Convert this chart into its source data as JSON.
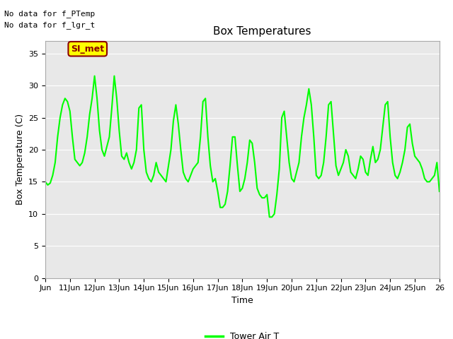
{
  "title": "Box Temperatures",
  "xlabel": "Time",
  "ylabel": "Box Temperature (C)",
  "no_data_text": [
    "No data for f_PTemp",
    "No data for f_lgr_t"
  ],
  "annotation_text": "SI_met",
  "annotation_color": "#8B0000",
  "annotation_bg": "#FFFF00",
  "annotation_border": "#8B0000",
  "line_color": "#00FF00",
  "line_width": 1.5,
  "ylim": [
    0,
    37
  ],
  "yticks": [
    0,
    5,
    10,
    15,
    20,
    25,
    30,
    35
  ],
  "legend_label": "Tower Air T",
  "legend_line_color": "#00FF00",
  "bg_color": "#ffffff",
  "plot_bg_color": "#E8E8E8",
  "grid_color": "white",
  "x_labels": [
    "Jun",
    "11Jun",
    "12Jun",
    "13Jun",
    "14Jun",
    "15Jun",
    "16Jun",
    "17Jun",
    "18Jun",
    "19Jun",
    "20Jun",
    "21Jun",
    "22Jun",
    "23Jun",
    "24Jun",
    "25Jun",
    "26"
  ],
  "tower_air_t_x": [
    0.0,
    0.1,
    0.2,
    0.3,
    0.4,
    0.5,
    0.6,
    0.7,
    0.8,
    0.9,
    1.0,
    1.1,
    1.2,
    1.3,
    1.4,
    1.5,
    1.6,
    1.7,
    1.8,
    1.9,
    2.0,
    2.1,
    2.2,
    2.3,
    2.4,
    2.5,
    2.6,
    2.7,
    2.8,
    2.9,
    3.0,
    3.1,
    3.2,
    3.3,
    3.4,
    3.5,
    3.6,
    3.7,
    3.8,
    3.9,
    4.0,
    4.1,
    4.2,
    4.3,
    4.4,
    4.5,
    4.6,
    4.7,
    4.8,
    4.9,
    5.0,
    5.1,
    5.2,
    5.3,
    5.4,
    5.5,
    5.6,
    5.7,
    5.8,
    5.9,
    6.0,
    6.1,
    6.2,
    6.3,
    6.4,
    6.5,
    6.6,
    6.7,
    6.8,
    6.9,
    7.0,
    7.1,
    7.2,
    7.3,
    7.4,
    7.5,
    7.6,
    7.7,
    7.8,
    7.9,
    8.0,
    8.1,
    8.2,
    8.3,
    8.4,
    8.5,
    8.6,
    8.7,
    8.8,
    8.9,
    9.0,
    9.1,
    9.2,
    9.3,
    9.4,
    9.5,
    9.6,
    9.7,
    9.8,
    9.9,
    10.0,
    10.1,
    10.2,
    10.3,
    10.4,
    10.5,
    10.6,
    10.7,
    10.8,
    10.9,
    11.0,
    11.1,
    11.2,
    11.3,
    11.4,
    11.5,
    11.6,
    11.7,
    11.8,
    11.9,
    12.0,
    12.1,
    12.2,
    12.3,
    12.4,
    12.5,
    12.6,
    12.7,
    12.8,
    12.9,
    13.0,
    13.1,
    13.2,
    13.3,
    13.4,
    13.5,
    13.6,
    13.7,
    13.8,
    13.9,
    14.0,
    14.1,
    14.2,
    14.3,
    14.4,
    14.5,
    14.6,
    14.7,
    14.8,
    14.9,
    15.0,
    15.1,
    15.2,
    15.3,
    15.4,
    15.5,
    15.6,
    15.7,
    15.8,
    15.9,
    16.0
  ],
  "tower_air_t_y": [
    15.0,
    14.5,
    14.8,
    16.0,
    18.0,
    22.0,
    25.0,
    27.0,
    28.0,
    27.5,
    26.0,
    22.0,
    18.5,
    18.0,
    17.5,
    18.0,
    19.5,
    22.0,
    25.5,
    28.0,
    31.5,
    28.0,
    23.0,
    20.0,
    19.0,
    20.5,
    22.0,
    26.5,
    31.5,
    28.0,
    23.0,
    19.0,
    18.5,
    19.5,
    18.0,
    17.0,
    18.0,
    20.0,
    26.5,
    27.0,
    20.0,
    16.5,
    15.5,
    15.0,
    16.0,
    18.0,
    16.5,
    16.0,
    15.5,
    15.0,
    17.5,
    20.0,
    24.5,
    27.0,
    24.0,
    20.0,
    16.5,
    15.5,
    15.0,
    16.0,
    17.0,
    17.5,
    18.0,
    22.0,
    27.5,
    28.0,
    22.0,
    17.5,
    15.0,
    15.5,
    13.5,
    11.0,
    11.0,
    11.5,
    13.5,
    17.5,
    22.0,
    22.0,
    17.5,
    13.5,
    14.0,
    15.5,
    18.0,
    21.5,
    21.0,
    18.0,
    14.0,
    13.0,
    12.5,
    12.5,
    13.0,
    9.5,
    9.5,
    10.0,
    13.0,
    17.0,
    25.0,
    26.0,
    22.0,
    18.0,
    15.5,
    15.0,
    16.5,
    18.0,
    22.0,
    25.0,
    27.0,
    29.5,
    27.0,
    22.0,
    16.0,
    15.5,
    16.0,
    18.0,
    22.0,
    27.0,
    27.5,
    22.5,
    17.5,
    16.0,
    17.0,
    18.0,
    20.0,
    19.0,
    16.5,
    16.0,
    15.5,
    17.0,
    19.0,
    18.5,
    16.5,
    16.0,
    18.5,
    20.5,
    18.0,
    18.5,
    20.0,
    23.5,
    27.0,
    27.5,
    22.0,
    18.0,
    16.0,
    15.5,
    16.5,
    18.0,
    20.0,
    23.5,
    24.0,
    21.0,
    19.0,
    18.5,
    18.0,
    17.0,
    15.5,
    15.0,
    15.0,
    15.5,
    16.0,
    18.0,
    13.5
  ]
}
